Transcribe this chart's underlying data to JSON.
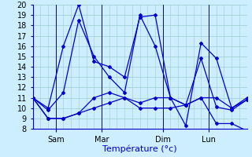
{
  "xlabel": "Température (°c)",
  "background_color": "#cceeff",
  "grid_color": "#99cccc",
  "line_color": "#0000cc",
  "xlim": [
    0,
    28
  ],
  "ylim": [
    8,
    20
  ],
  "yticks": [
    8,
    9,
    10,
    11,
    12,
    13,
    14,
    15,
    16,
    17,
    18,
    19,
    20
  ],
  "xtick_labels": [
    "Sam",
    "Mar",
    "Dim",
    "Lun"
  ],
  "xtick_positions": [
    3,
    9,
    17,
    23
  ],
  "lines": [
    {
      "x": [
        0,
        2,
        4,
        6,
        8,
        10,
        12,
        14,
        16,
        18,
        20,
        22,
        24,
        26,
        28
      ],
      "y": [
        11,
        10,
        16,
        20,
        14.5,
        14,
        13,
        18.8,
        19,
        11,
        8.3,
        16.3,
        14.8,
        10,
        10.8
      ]
    },
    {
      "x": [
        0,
        2,
        4,
        6,
        8,
        10,
        12,
        14,
        16,
        18,
        20,
        22,
        24,
        26,
        28
      ],
      "y": [
        11,
        9.8,
        11.5,
        18.5,
        15,
        13,
        11.5,
        19,
        16,
        11,
        10.3,
        14.8,
        10.1,
        9.8,
        10.8
      ]
    },
    {
      "x": [
        0,
        2,
        4,
        6,
        8,
        10,
        12,
        14,
        16,
        18,
        20,
        22,
        24,
        26,
        28
      ],
      "y": [
        11,
        9,
        9,
        9.5,
        11,
        11.5,
        11,
        10.5,
        11,
        11,
        10.3,
        11,
        11,
        10,
        11
      ]
    },
    {
      "x": [
        0,
        2,
        4,
        6,
        8,
        10,
        12,
        14,
        16,
        18,
        20,
        22,
        24,
        26,
        28
      ],
      "y": [
        11,
        9,
        9,
        9.5,
        10,
        10.5,
        11,
        10,
        10,
        10,
        10.3,
        11,
        8.5,
        8.5,
        7.8
      ]
    }
  ]
}
